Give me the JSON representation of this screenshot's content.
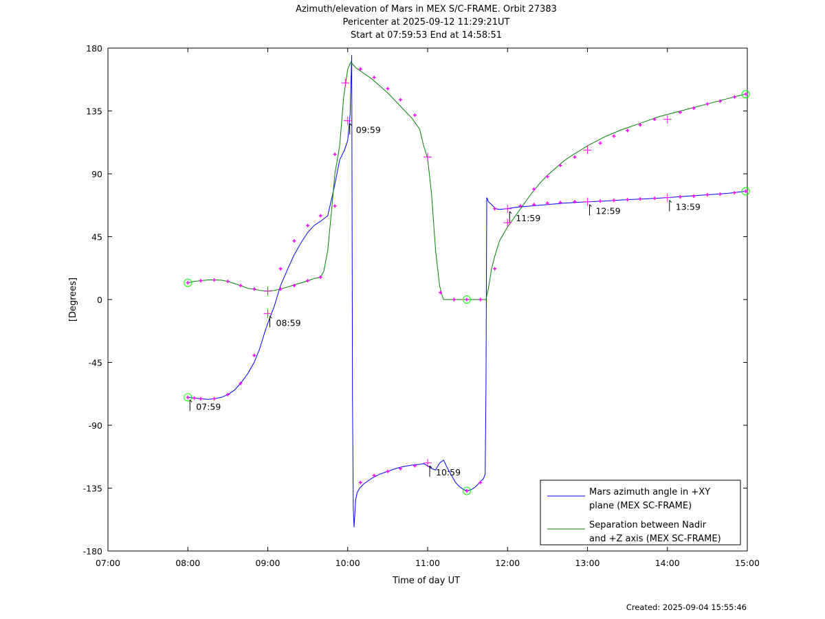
{
  "chart_data": {
    "type": "line",
    "title_lines": [
      "Azimuth/elevation of Mars in MEX S/C-FRAME.  Orbit 27383",
      "Pericenter at 2025-09-12 11:29:21UT",
      "Start at 07:59:53 End at 14:58:51"
    ],
    "xlabel": "Time of day UT",
    "ylabel": "[Degrees]",
    "x_unit": "hours",
    "xlim": [
      7,
      15
    ],
    "ylim": [
      -180,
      180
    ],
    "x_ticks": [
      7,
      8,
      9,
      10,
      11,
      12,
      13,
      14,
      15
    ],
    "x_tick_labels": [
      "07:00",
      "08:00",
      "09:00",
      "10:00",
      "11:00",
      "12:00",
      "13:00",
      "14:00",
      "15:00"
    ],
    "y_ticks": [
      -180,
      -135,
      -90,
      -45,
      0,
      45,
      90,
      135,
      180
    ],
    "y_tick_labels": [
      "-180",
      "-135",
      "-90",
      "-45",
      "0",
      "45",
      "90",
      "135",
      "180"
    ],
    "grid": false,
    "legend_position": "bottom-right",
    "series": [
      {
        "name": "Mars azimuth angle in +XY plane (MEX SC-FRAME)",
        "legend_lines": [
          "Mars azimuth angle in +XY",
          "plane (MEX SC-FRAME)"
        ],
        "color": "#0000ff",
        "x": [
          8.0,
          8.08,
          8.16,
          8.25,
          8.33,
          8.42,
          8.5,
          8.58,
          8.66,
          8.75,
          8.83,
          8.9,
          8.97,
          9.0,
          9.08,
          9.16,
          9.25,
          9.33,
          9.42,
          9.5,
          9.58,
          9.66,
          9.75,
          9.83,
          9.9,
          9.96,
          10.0,
          10.03,
          10.05,
          10.06,
          10.07,
          10.08,
          10.1,
          10.12,
          10.15,
          10.2,
          10.3,
          10.4,
          10.5,
          10.6,
          10.7,
          10.8,
          10.9,
          10.95,
          11.0,
          11.05,
          11.1,
          11.15,
          11.2,
          11.25,
          11.3,
          11.35,
          11.4,
          11.45,
          11.49,
          11.55,
          11.6,
          11.65,
          11.7,
          11.72,
          11.73,
          11.74,
          11.76,
          11.8,
          11.85,
          11.9,
          12.0,
          12.1,
          12.2,
          12.3,
          12.5,
          12.7,
          13.0,
          13.2,
          13.5,
          13.7,
          14.0,
          14.25,
          14.5,
          14.75,
          14.98
        ],
        "y": [
          -70,
          -70.5,
          -71,
          -71.5,
          -71,
          -70,
          -68,
          -65,
          -60,
          -53,
          -45,
          -35,
          -22,
          -17,
          -5,
          10,
          22,
          32,
          41,
          48,
          53,
          56,
          60,
          80,
          100,
          107,
          114,
          132,
          175,
          -70,
          -150,
          -163,
          -143,
          -138,
          -135,
          -132,
          -128,
          -125,
          -123,
          -121,
          -119.5,
          -118.5,
          -118,
          -117.5,
          -119,
          -121,
          -122,
          -117,
          -115,
          -121,
          -126,
          -131,
          -134,
          -136,
          -137,
          -136,
          -134,
          -131,
          -128,
          -125,
          -62,
          73,
          70,
          68,
          65,
          64.5,
          65,
          66,
          66.5,
          67,
          68,
          69,
          70,
          70.5,
          71.5,
          72,
          73,
          74,
          75,
          76,
          77.5
        ]
      },
      {
        "name": "Separation between Nadir and +Z axis (MEX SC-FRAME)",
        "legend_lines": [
          "Separation between Nadir",
          "and +Z axis (MEX SC-FRAME)"
        ],
        "color": "#008000",
        "x": [
          8.0,
          8.08,
          8.16,
          8.25,
          8.33,
          8.42,
          8.5,
          8.58,
          8.66,
          8.75,
          8.83,
          8.9,
          9.0,
          9.08,
          9.16,
          9.25,
          9.33,
          9.42,
          9.5,
          9.58,
          9.66,
          9.7,
          9.75,
          9.8,
          9.84,
          9.9,
          9.95,
          10.0,
          10.04,
          10.07,
          10.1,
          10.2,
          10.3,
          10.4,
          10.5,
          10.6,
          10.7,
          10.8,
          10.9,
          10.95,
          11.0,
          11.05,
          11.1,
          11.15,
          11.18,
          11.2,
          11.3,
          11.4,
          11.5,
          11.6,
          11.72,
          11.73,
          11.76,
          11.8,
          11.85,
          11.9,
          12.0,
          12.1,
          12.2,
          12.3,
          12.4,
          12.5,
          12.6,
          12.7,
          12.8,
          12.9,
          13.0,
          13.1,
          13.2,
          13.3,
          13.4,
          13.5,
          13.6,
          13.7,
          13.8,
          13.9,
          14.0,
          14.1,
          14.2,
          14.3,
          14.4,
          14.5,
          14.6,
          14.7,
          14.8,
          14.9,
          14.98
        ],
        "y": [
          12,
          13,
          13.5,
          14,
          14,
          13.8,
          13,
          11.5,
          10,
          8,
          7.5,
          6.5,
          6,
          6.5,
          7.5,
          9,
          10.5,
          12,
          13.5,
          15,
          16,
          20,
          35,
          65,
          90,
          110,
          145,
          165,
          170,
          168,
          166,
          162,
          158,
          153,
          148,
          142,
          136,
          130,
          122,
          110,
          101,
          75,
          35,
          10,
          3,
          0,
          0,
          0,
          0,
          0,
          0,
          0,
          8,
          22,
          33,
          42,
          52,
          60,
          68,
          76,
          83,
          89,
          94,
          99,
          103,
          106.5,
          110,
          113,
          116,
          118.5,
          121,
          123,
          125,
          127,
          129,
          131,
          132.5,
          134,
          135.5,
          137,
          138.5,
          140,
          141.5,
          143,
          144.5,
          146,
          147
        ]
      }
    ],
    "annotations": [
      {
        "label": "07:59",
        "x": 8.0,
        "y": -70
      },
      {
        "label": "08:59",
        "x": 9.0,
        "y": -10
      },
      {
        "label": "09:59",
        "x": 10.0,
        "y": 128
      },
      {
        "label": "10:59",
        "x": 11.0,
        "y": -117
      },
      {
        "label": "11:59",
        "x": 12.0,
        "y": 65
      },
      {
        "label": "12:59",
        "x": 13.0,
        "y": 70
      },
      {
        "label": "13:59",
        "x": 14.0,
        "y": 73
      }
    ],
    "circle_markers": [
      {
        "x": 8.0,
        "y": -70
      },
      {
        "x": 8.0,
        "y": 12
      },
      {
        "x": 11.49,
        "y": 0
      },
      {
        "x": 11.49,
        "y": -137
      },
      {
        "x": 14.98,
        "y": 147
      },
      {
        "x": 14.98,
        "y": 77.5
      }
    ],
    "plus_markers": [
      {
        "x": 9.0,
        "y": 6
      },
      {
        "x": 9.0,
        "y": -10
      },
      {
        "x": 9.97,
        "y": 155
      },
      {
        "x": 10.0,
        "y": 128
      },
      {
        "x": 11.0,
        "y": -117
      },
      {
        "x": 11.0,
        "y": 102
      },
      {
        "x": 12.0,
        "y": 65
      },
      {
        "x": 12.0,
        "y": 55
      },
      {
        "x": 13.0,
        "y": 70
      },
      {
        "x": 13.0,
        "y": 107
      },
      {
        "x": 14.0,
        "y": 73
      },
      {
        "x": 14.0,
        "y": 129
      }
    ],
    "dots": [
      {
        "x": 8.08,
        "y": -70.5
      },
      {
        "x": 8.16,
        "y": -71
      },
      {
        "x": 8.33,
        "y": -71
      },
      {
        "x": 8.5,
        "y": -68
      },
      {
        "x": 8.66,
        "y": -60
      },
      {
        "x": 8.83,
        "y": -40
      },
      {
        "x": 9.16,
        "y": 22
      },
      {
        "x": 9.33,
        "y": 42
      },
      {
        "x": 9.5,
        "y": 53
      },
      {
        "x": 9.66,
        "y": 60
      },
      {
        "x": 9.84,
        "y": 104
      },
      {
        "x": 8.16,
        "y": 13.5
      },
      {
        "x": 8.33,
        "y": 14
      },
      {
        "x": 8.5,
        "y": 13
      },
      {
        "x": 8.66,
        "y": 10
      },
      {
        "x": 8.83,
        "y": 7.5
      },
      {
        "x": 9.16,
        "y": 7.5
      },
      {
        "x": 9.33,
        "y": 10
      },
      {
        "x": 9.5,
        "y": 13.5
      },
      {
        "x": 9.66,
        "y": 16
      },
      {
        "x": 9.84,
        "y": 67
      },
      {
        "x": 10.16,
        "y": 165
      },
      {
        "x": 10.33,
        "y": 159
      },
      {
        "x": 10.5,
        "y": 151
      },
      {
        "x": 10.66,
        "y": 143
      },
      {
        "x": 10.84,
        "y": 132
      },
      {
        "x": 11.16,
        "y": 5
      },
      {
        "x": 11.33,
        "y": 0
      },
      {
        "x": 11.66,
        "y": 0
      },
      {
        "x": 11.84,
        "y": 22
      },
      {
        "x": 12.33,
        "y": 79
      },
      {
        "x": 12.5,
        "y": 88
      },
      {
        "x": 12.66,
        "y": 96
      },
      {
        "x": 12.84,
        "y": 102
      },
      {
        "x": 13.16,
        "y": 112
      },
      {
        "x": 13.33,
        "y": 117
      },
      {
        "x": 13.5,
        "y": 121
      },
      {
        "x": 13.66,
        "y": 125
      },
      {
        "x": 13.84,
        "y": 129
      },
      {
        "x": 14.16,
        "y": 134
      },
      {
        "x": 14.33,
        "y": 137
      },
      {
        "x": 14.5,
        "y": 140
      },
      {
        "x": 14.66,
        "y": 142
      },
      {
        "x": 14.84,
        "y": 145
      },
      {
        "x": 10.16,
        "y": -131
      },
      {
        "x": 10.33,
        "y": -126
      },
      {
        "x": 10.5,
        "y": -123
      },
      {
        "x": 10.66,
        "y": -121
      },
      {
        "x": 10.84,
        "y": -119
      },
      {
        "x": 11.66,
        "y": -131
      },
      {
        "x": 11.84,
        "y": 65
      },
      {
        "x": 12.16,
        "y": 67
      },
      {
        "x": 12.33,
        "y": 68
      },
      {
        "x": 12.5,
        "y": 69
      },
      {
        "x": 12.66,
        "y": 69.5
      },
      {
        "x": 12.84,
        "y": 70
      },
      {
        "x": 13.16,
        "y": 70.5
      },
      {
        "x": 13.33,
        "y": 71
      },
      {
        "x": 13.5,
        "y": 71.5
      },
      {
        "x": 13.66,
        "y": 72
      },
      {
        "x": 13.84,
        "y": 72.5
      },
      {
        "x": 14.16,
        "y": 73.5
      },
      {
        "x": 14.33,
        "y": 74
      },
      {
        "x": 14.5,
        "y": 75
      },
      {
        "x": 14.66,
        "y": 75.5
      },
      {
        "x": 14.84,
        "y": 76.5
      }
    ],
    "marker_color": "#ff00ff",
    "circle_color": "#00ff00"
  },
  "footer": {
    "created": "Created: 2025-09-04 15:55:46"
  }
}
